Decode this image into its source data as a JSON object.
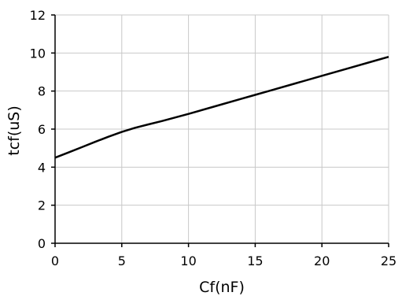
{
  "chart_data": {
    "type": "line",
    "title": "",
    "xlabel": "Cf(nF)",
    "ylabel": "tcf(uS)",
    "xlim": [
      0,
      25
    ],
    "ylim": [
      0,
      12
    ],
    "xticks": [
      0,
      5,
      10,
      15,
      20,
      25
    ],
    "yticks": [
      0,
      2,
      4,
      6,
      8,
      10,
      12
    ],
    "grid": true,
    "colors": {
      "line": "#000000",
      "grid": "#c8c8c8",
      "axis": "#000000"
    },
    "series": [
      {
        "x": [
          0,
          1,
          2,
          3,
          4,
          5,
          6,
          7,
          8,
          10,
          12,
          14,
          15,
          16,
          18,
          20,
          22,
          24,
          25
        ],
        "values": [
          4.5,
          4.77,
          5.05,
          5.33,
          5.6,
          5.85,
          6.07,
          6.25,
          6.42,
          6.8,
          7.2,
          7.6,
          7.8,
          8.0,
          8.4,
          8.8,
          9.2,
          9.6,
          9.8
        ]
      }
    ]
  }
}
